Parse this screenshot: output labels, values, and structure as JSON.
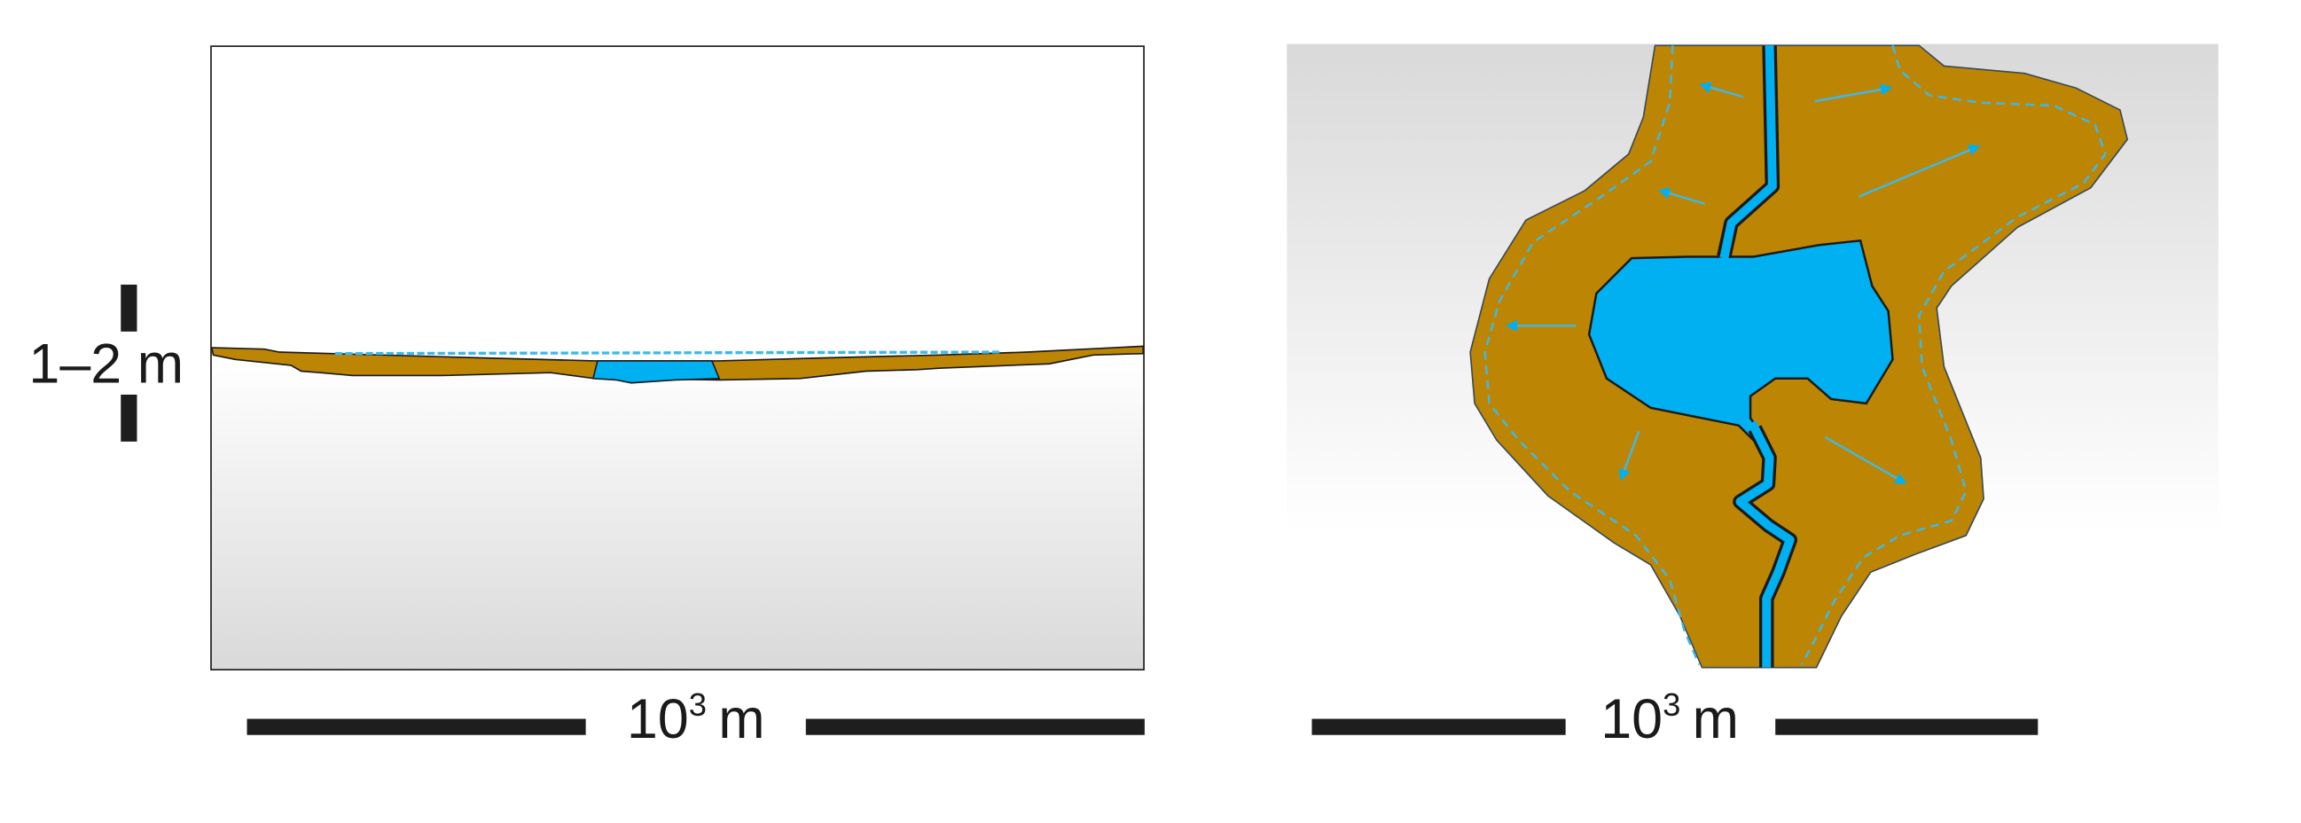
{
  "colors": {
    "sediment": "#BD8504",
    "water": "#00B0F0",
    "outline": "#1a1a1a",
    "scale_bar": "#1e1e1e",
    "background_light": "#ffffff",
    "background_dark": "#d9d9d9"
  },
  "left_panel": {
    "vertical_scale": "1–2 m",
    "horizontal_scale": {
      "base": "10",
      "exponent": "3",
      "unit": "m"
    }
  },
  "right_panel": {
    "horizontal_scale": {
      "base": "10",
      "exponent": "3",
      "unit": "m"
    }
  }
}
